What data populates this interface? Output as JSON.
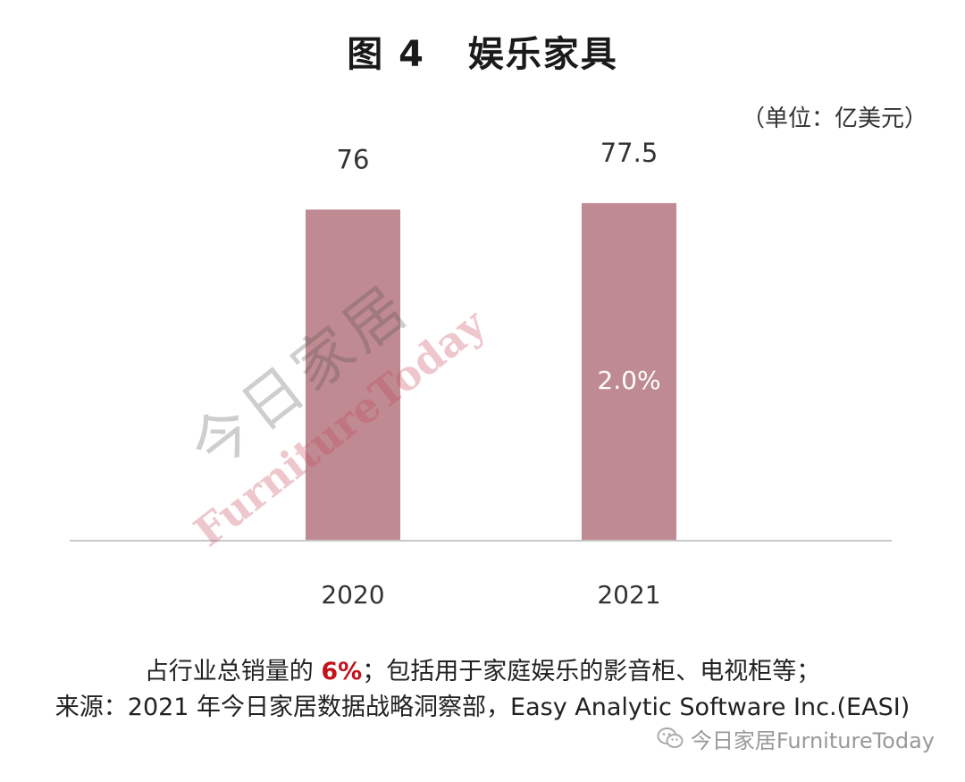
{
  "title": "图 4   娱乐家具",
  "unit_label": "（单位：亿美元）",
  "colors": {
    "bar": "#bf8a91",
    "axis": "#c8c8c8",
    "highlight": "#c4121b"
  },
  "chart_data": {
    "type": "bar",
    "categories": [
      "2020",
      "2021"
    ],
    "values": [
      76,
      77.5
    ],
    "data_labels": [
      "76",
      "77.5"
    ],
    "growth_label": "2.0%",
    "title": "图 4   娱乐家具",
    "ylabel": "（单位：亿美元）",
    "ylim": [
      0,
      80
    ],
    "grid": false,
    "legend": "none"
  },
  "notes": {
    "line1_before": "占行业总销量的 ",
    "line1_highlight": "6%",
    "line1_after": "；包括用于家庭娱乐的影音柜、电视柜等；",
    "line2": "来源：2021 年今日家居数据战略洞察部，Easy Analytic Software Inc.(EASI)"
  },
  "watermark": {
    "cn": "今日家居",
    "en": "FurnitureToday"
  },
  "brand": {
    "icon": "wechat-icon",
    "text": "今日家居FurnitureToday"
  }
}
